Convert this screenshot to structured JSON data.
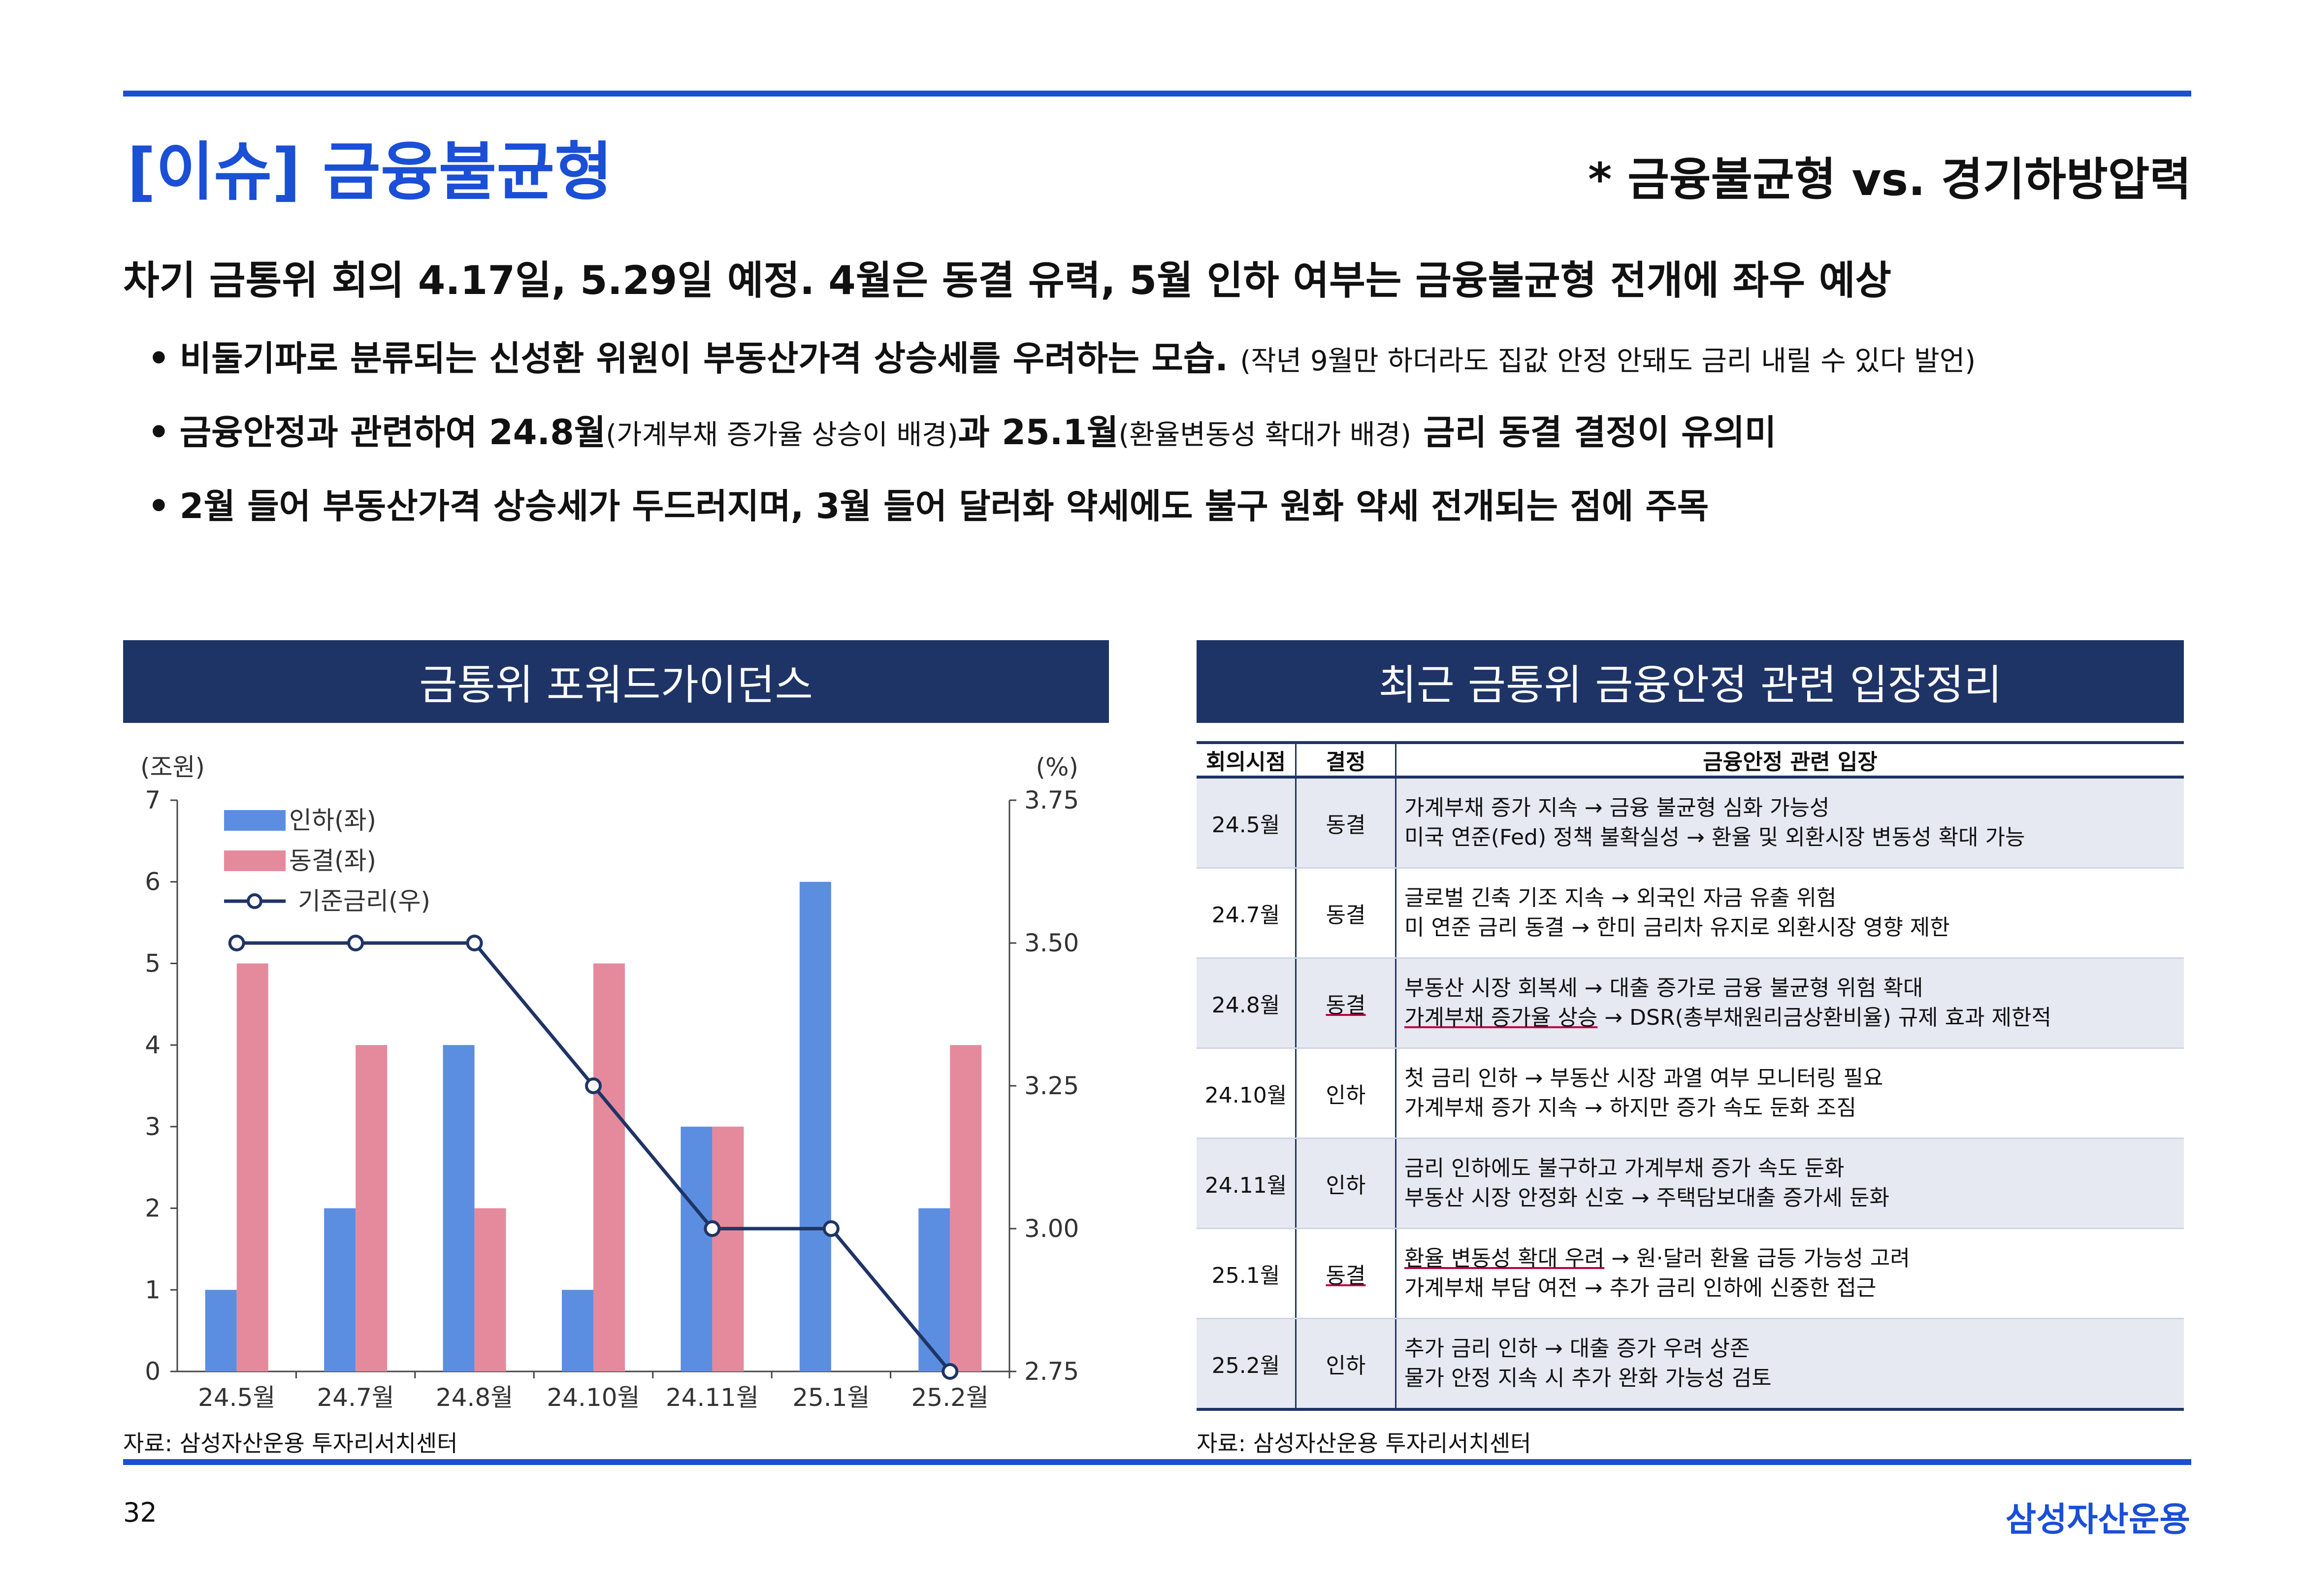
{
  "header": {
    "title": "[이슈] 금융불균형",
    "subtitle": "* 금융불균형 vs. 경기하방압력"
  },
  "headline": "차기 금통위 회의 4.17일, 5.29일 예정. 4월은 동결 유력, 5월 인하 여부는 금융불균형 전개에 좌우 예상",
  "bullets": [
    {
      "main": "비둘기파로 분류되는 신성환 위원이 부동산가격 상승세를 우려하는 모습.",
      "note": "(작년 9월만 하더라도 집값 안정 안돼도 금리 내릴 수 있다 발언)"
    },
    {
      "a": "금융안정과 관련하여 24.8월",
      "a_note": "(가계부채 증가율 상승이 배경)",
      "b": "과 25.1월",
      "b_note": "(환율변동성 확대가 배경)",
      "c": " 금리 동결 결정이 유의미"
    },
    {
      "main": "2월 들어 부동산가격 상승세가 두드러지며, 3월 들어 달러화 약세에도 불구 원화 약세 전개되는 점에 주목"
    }
  ],
  "bullet_symbol": "•",
  "chart_panel": {
    "heading": "금통위 포워드가이던스",
    "source": "자료: 삼성자산운용 투자리서치센터"
  },
  "table_panel": {
    "heading": "최근 금통위 금융안정 관련 입장정리",
    "source": "자료: 삼성자산운용 투자리서치센터"
  },
  "chart_data": {
    "type": "bar",
    "categories": [
      "24.5월",
      "24.7월",
      "24.8월",
      "24.10월",
      "24.11월",
      "25.1월",
      "25.2월"
    ],
    "y_left_label": "(조원)",
    "y_right_label": "(%)",
    "y_left_ticks": [
      "0",
      "1",
      "2",
      "3",
      "4",
      "5",
      "6",
      "7"
    ],
    "y_right_ticks": [
      "2.75",
      "3.00",
      "3.25",
      "3.50",
      "3.75"
    ],
    "ylim_left": [
      0,
      7
    ],
    "ylim_right": [
      2.75,
      3.75
    ],
    "legend_position": "top-left",
    "series": [
      {
        "name": "인하(좌)",
        "kind": "bar",
        "axis": "left",
        "color": "#5b8ee0",
        "values": [
          1,
          2,
          4,
          1,
          3,
          6,
          2
        ]
      },
      {
        "name": "동결(좌)",
        "kind": "bar",
        "axis": "left",
        "color": "#e48a9c",
        "values": [
          5,
          4,
          2,
          5,
          3,
          0,
          4
        ]
      },
      {
        "name": "기준금리(우)",
        "kind": "line",
        "axis": "right",
        "color": "#1f3466",
        "values": [
          3.5,
          3.5,
          3.5,
          3.25,
          3.0,
          3.0,
          2.75
        ]
      }
    ]
  },
  "table": {
    "headers": [
      "회의시점",
      "결정",
      "금융안정 관련 입장"
    ],
    "rows": [
      {
        "date": "24.5월",
        "decision": "동결",
        "line1": "가계부채 증가 지속 → 금융 불균형 심화 가능성",
        "line2": "미국 연준(Fed) 정책 불확실성 → 환율 및 외환시장 변동성 확대 가능"
      },
      {
        "date": "24.7월",
        "decision": "동결",
        "line1": "글로벌 긴축 기조 지속 → 외국인 자금 유출 위험",
        "line2": "미 연준 금리 동결 → 한미 금리차 유지로 외환시장 영향 제한"
      },
      {
        "date": "24.8월",
        "decision": "동결",
        "line1": "부동산 시장 회복세 → 대출 증가로 금융 불균형 위험 확대",
        "line2a": "가계부채 증가율 상승",
        "line2b": " → DSR(총부채원리금상환비율) 규제 효과 제한적"
      },
      {
        "date": "24.10월",
        "decision": "인하",
        "line1": "첫 금리 인하 → 부동산 시장 과열 여부 모니터링 필요",
        "line2": "가계부채 증가 지속 → 하지만 증가 속도 둔화 조짐"
      },
      {
        "date": "24.11월",
        "decision": "인하",
        "line1": "금리 인하에도 불구하고 가계부채 증가 속도 둔화",
        "line2": "부동산 시장 안정화 신호 → 주택담보대출 증가세 둔화"
      },
      {
        "date": "25.1월",
        "decision": "동결",
        "line1a": "환율 변동성 확대 우려",
        "line1b": " → 원·달러 환율 급등 가능성 고려",
        "line2": "가계부채 부담 여전 → 추가 금리 인하에 신중한 접근"
      },
      {
        "date": "25.2월",
        "decision": "인하",
        "line1": "추가 금리 인하 → 대출 증가 우려 상존",
        "line2": "물가 안정 지속 시 추가 완화 가능성 검토"
      }
    ]
  },
  "footer": {
    "page": "32",
    "brand": "삼성자산운용"
  }
}
